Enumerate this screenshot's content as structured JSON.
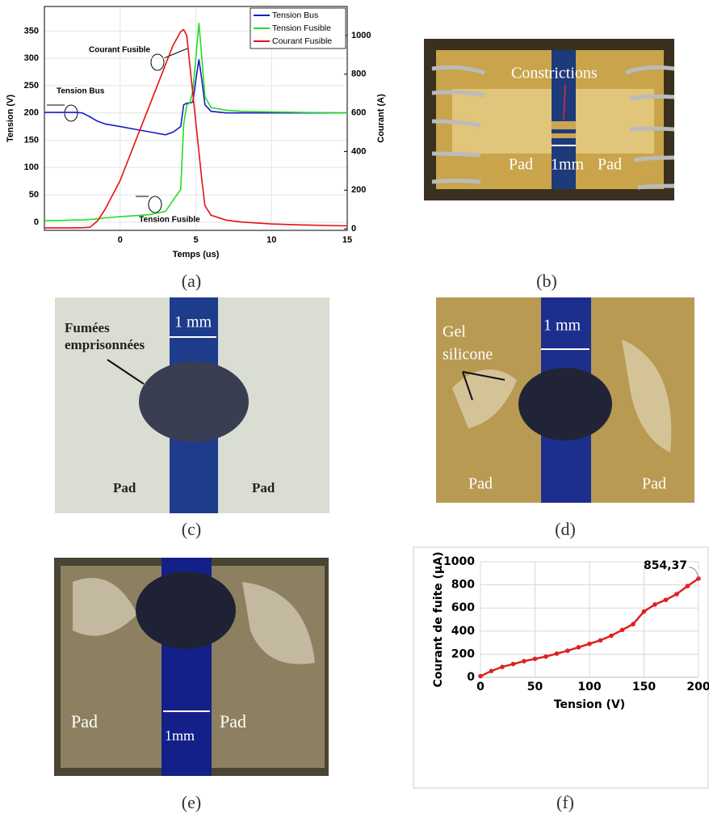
{
  "chart_data": [
    {
      "type": "line",
      "xlabel": "Temps (us)",
      "ylabel": "Tension (V)",
      "y2label": "Courant (A)",
      "x": [
        -5,
        -4,
        -3,
        -2.5,
        -2,
        -1.5,
        -1,
        0,
        1,
        2,
        3,
        3.5,
        4,
        4.2,
        4.4,
        4.6,
        4.8,
        5,
        5.2,
        5.4,
        5.6,
        6,
        7,
        8,
        10,
        12,
        15
      ],
      "series": [
        {
          "name": "Tension Bus",
          "color": "#1a1acc",
          "values": [
            201,
            201,
            201,
            200,
            193,
            185,
            180,
            175,
            170,
            165,
            160,
            165,
            175,
            215,
            218,
            218,
            220,
            260,
            298,
            260,
            215,
            203,
            200,
            200,
            200,
            200,
            200
          ]
        },
        {
          "name": "Tension Fusible",
          "color": "#22dd22",
          "values": [
            3,
            3,
            4,
            4,
            5,
            6,
            8,
            10,
            12,
            14,
            20,
            40,
            60,
            180,
            215,
            218,
            240,
            300,
            365,
            300,
            230,
            210,
            205,
            203,
            202,
            201,
            200
          ]
        },
        {
          "name": "Courant Fusible",
          "color": "#e81010",
          "axis": "y2",
          "values": [
            5,
            5,
            5,
            6,
            8,
            40,
            100,
            250,
            450,
            650,
            850,
            950,
            1020,
            1030,
            1000,
            850,
            700,
            550,
            400,
            250,
            120,
            70,
            45,
            35,
            25,
            20,
            15
          ]
        }
      ],
      "xlim": [
        -5,
        15
      ],
      "xticks": [
        0,
        5,
        10,
        15
      ],
      "ylim": [
        -15,
        395
      ],
      "yticks": [
        0,
        50,
        100,
        150,
        200,
        250,
        300,
        350
      ],
      "y2lim": [
        -8,
        1150
      ],
      "y2ticks": [
        0,
        200,
        400,
        600,
        800,
        1000
      ],
      "grid": true,
      "legend": "upper right",
      "annotations": [
        "Courant Fusible",
        "Tension Bus",
        "Tension Fusible"
      ]
    },
    {
      "type": "line",
      "xlabel": "Tension (V)",
      "ylabel": "Courant de fuite (µA)",
      "x": [
        0,
        10,
        20,
        30,
        40,
        50,
        60,
        70,
        80,
        90,
        100,
        110,
        120,
        130,
        140,
        150,
        160,
        170,
        180,
        190,
        200
      ],
      "values": [
        10,
        55,
        90,
        115,
        140,
        160,
        180,
        205,
        230,
        260,
        290,
        320,
        360,
        410,
        460,
        570,
        630,
        670,
        720,
        790,
        854.37
      ],
      "value_labels": [
        null,
        null,
        null,
        null,
        null,
        null,
        null,
        null,
        null,
        null,
        null,
        null,
        null,
        null,
        null,
        null,
        null,
        null,
        null,
        null,
        "854,37"
      ],
      "color": "#e02020",
      "markers": true,
      "xlim": [
        0,
        200
      ],
      "xticks": [
        0,
        50,
        100,
        150,
        200
      ],
      "ylim": [
        0,
        1000
      ],
      "yticks": [
        0,
        200,
        400,
        600,
        800,
        1000
      ],
      "grid": true
    }
  ],
  "panel_labels": [
    "(a)",
    "(b)",
    "(c)",
    "(d)",
    "(e)",
    "(f)"
  ],
  "photos": [
    {
      "texts": [
        "Constrictions",
        "Pad",
        "1mm",
        "Pad"
      ]
    },
    {
      "texts": [
        "Fumées",
        "emprisonnées",
        "1 mm",
        "Pad",
        "Pad"
      ]
    },
    {
      "texts": [
        "Gel",
        "silicone",
        "1 mm",
        "Pad",
        "Pad"
      ]
    },
    {
      "texts": [
        "Pad",
        "1mm",
        "Pad"
      ]
    }
  ]
}
